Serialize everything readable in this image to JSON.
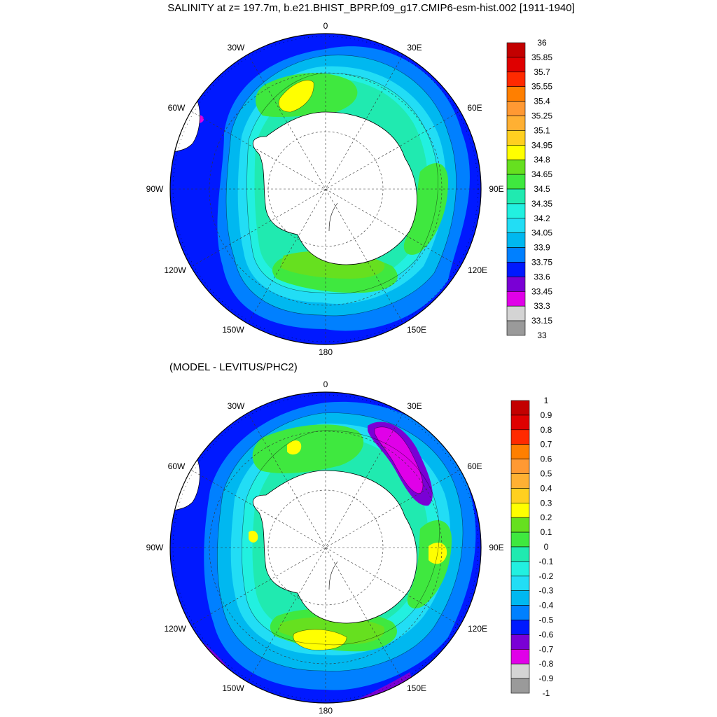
{
  "chart_data": [
    {
      "type": "heatmap",
      "projection": "south-polar-stereographic",
      "title": "SALINITY at z= 197.7m, b.e21.BHIST_BPRP.f09_g17.CMIP6-esm-hist.002 [1911-1940]",
      "longitude_labels": [
        "0",
        "30E",
        "60E",
        "90E",
        "120E",
        "150E",
        "180",
        "150W",
        "120W",
        "90W",
        "60W",
        "30W"
      ],
      "colorbar_labels": [
        "36",
        "35.85",
        "35.7",
        "35.55",
        "35.4",
        "35.25",
        "35.1",
        "34.95",
        "34.8",
        "34.65",
        "34.5",
        "34.35",
        "34.2",
        "34.05",
        "33.9",
        "33.75",
        "33.6",
        "33.45",
        "33.3",
        "33.15",
        "33"
      ],
      "colorbar_colors": [
        "#c30000",
        "#df0000",
        "#ff2a00",
        "#ff7f00",
        "#ff9933",
        "#ffb033",
        "#ffd020",
        "#ffff00",
        "#66e01f",
        "#3fe83f",
        "#20eab0",
        "#22f0e0",
        "#22ddf5",
        "#00b8f0",
        "#0080ff",
        "#0019ff",
        "#7a00d5",
        "#e000e8",
        "#d4d4d4",
        "#9a9a9a"
      ],
      "value_range": [
        33,
        36
      ],
      "contour_interval": 0.15
    },
    {
      "type": "heatmap",
      "projection": "south-polar-stereographic",
      "title": "(MODEL - LEVITUS/PHC2)",
      "longitude_labels": [
        "0",
        "30E",
        "60E",
        "90E",
        "120E",
        "150E",
        "180",
        "150W",
        "120W",
        "90W",
        "60W",
        "30W"
      ],
      "colorbar_labels": [
        "1",
        "0.9",
        "0.8",
        "0.7",
        "0.6",
        "0.5",
        "0.4",
        "0.3",
        "0.2",
        "0.1",
        "0",
        "-0.1",
        "-0.2",
        "-0.3",
        "-0.4",
        "-0.5",
        "-0.6",
        "-0.7",
        "-0.8",
        "-0.9",
        "-1"
      ],
      "colorbar_colors": [
        "#c30000",
        "#df0000",
        "#ff2a00",
        "#ff7f00",
        "#ff9933",
        "#ffb033",
        "#ffd020",
        "#ffff00",
        "#66e01f",
        "#3fe83f",
        "#20eab0",
        "#22f0e0",
        "#22ddf5",
        "#00b8f0",
        "#0080ff",
        "#0019ff",
        "#7a00d5",
        "#e000e8",
        "#d4d4d4",
        "#9a9a9a"
      ],
      "value_range": [
        -1,
        1
      ],
      "contour_interval": 0.1
    }
  ]
}
